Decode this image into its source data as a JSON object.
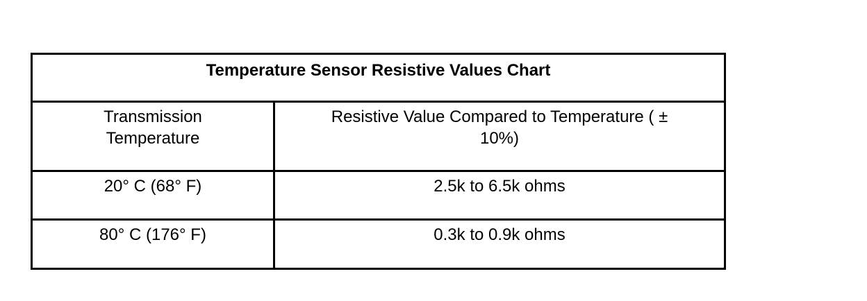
{
  "table": {
    "title": "Temperature Sensor Resistive Values Chart",
    "header": {
      "col1": "Transmission\nTemperature",
      "col2": "Resistive Value Compared to Temperature ( ±\n10%)"
    },
    "rows": [
      {
        "temperature": "20° C (68° F)",
        "resistance": "2.5k to 6.5k ohms"
      },
      {
        "temperature": "80° C (176° F)",
        "resistance": "0.3k to 0.9k ohms"
      }
    ]
  }
}
